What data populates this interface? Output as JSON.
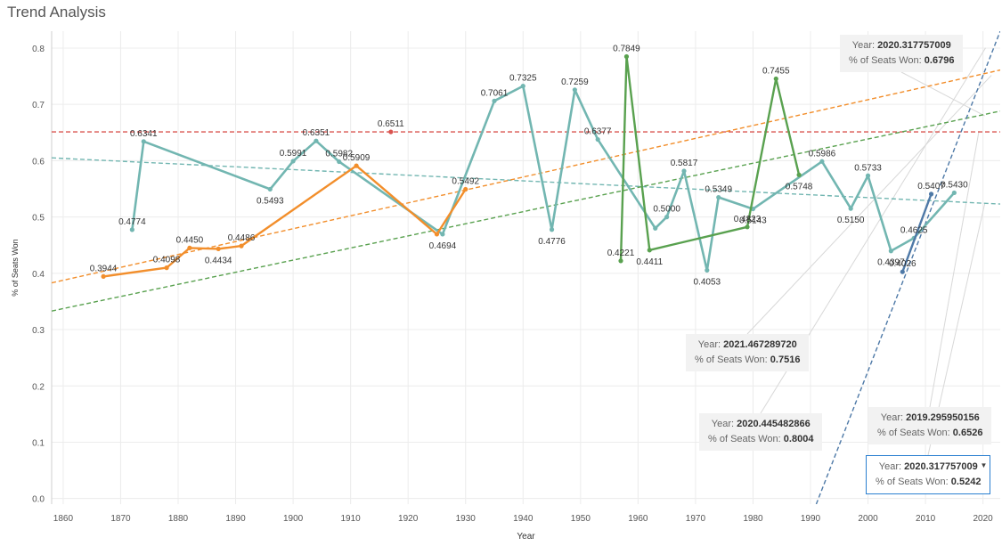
{
  "title": "Trend Analysis",
  "colors": {
    "teal": "#72b6b1",
    "orange": "#f28e2b",
    "green": "#59a14f",
    "blue": "#4e79a7",
    "red": "#d9534f",
    "grid": "#ececec",
    "tooltip_border": "#2a7fd0"
  },
  "chart_data": {
    "type": "line",
    "xlabel": "Year",
    "ylabel": "% of Seats Won",
    "xlim": [
      1858,
      2023
    ],
    "ylim": [
      -0.01,
      0.83
    ],
    "xticks": [
      "1860",
      "1870",
      "1880",
      "1890",
      "1900",
      "1910",
      "1920",
      "1930",
      "1940",
      "1950",
      "1960",
      "1970",
      "1980",
      "1990",
      "2000",
      "2010",
      "2020"
    ],
    "yticks": [
      "0.0",
      "0.1",
      "0.2",
      "0.3",
      "0.4",
      "0.5",
      "0.6",
      "0.7",
      "0.8"
    ],
    "grid": true,
    "series": [
      {
        "color": "#72b6b1",
        "points": [
          {
            "x": 1872,
            "y": 0.4774,
            "label": "0.4774"
          },
          {
            "x": 1874,
            "y": 0.6341,
            "label": "0.6341"
          },
          {
            "x": 1896,
            "y": 0.5493,
            "label": "0.5493"
          },
          {
            "x": 1900,
            "y": 0.5991,
            "label": "0.5991"
          },
          {
            "x": 1904,
            "y": 0.6351,
            "label": "0.6351"
          },
          {
            "x": 1908,
            "y": 0.5982,
            "label": "0.5982"
          },
          {
            "x": 1926,
            "y": 0.4694,
            "label": "0.4694"
          },
          {
            "x": 1935,
            "y": 0.7061,
            "label": "0.7061"
          },
          {
            "x": 1940,
            "y": 0.7325,
            "label": "0.7325"
          },
          {
            "x": 1945,
            "y": 0.4776,
            "label": "0.4776"
          },
          {
            "x": 1949,
            "y": 0.7259,
            "label": "0.7259"
          },
          {
            "x": 1953,
            "y": 0.6377,
            "label": "0.6377"
          },
          {
            "x": 1963,
            "y": 0.48,
            "label": ""
          },
          {
            "x": 1965,
            "y": 0.5,
            "label": "0.5000"
          },
          {
            "x": 1968,
            "y": 0.5817,
            "label": "0.5817"
          },
          {
            "x": 1972,
            "y": 0.4053,
            "label": "0.4053"
          },
          {
            "x": 1974,
            "y": 0.5349,
            "label": "0.5349"
          },
          {
            "x": 1980,
            "y": 0.5143,
            "label": "0.5143"
          },
          {
            "x": 1992,
            "y": 0.5986,
            "label": "0.5986"
          },
          {
            "x": 1997,
            "y": 0.515,
            "label": "0.5150"
          },
          {
            "x": 2000,
            "y": 0.5733,
            "label": "0.5733"
          },
          {
            "x": 2004,
            "y": 0.4397,
            "label": "0.4397"
          },
          {
            "x": 2008,
            "y": 0.4625,
            "label": "0.4625"
          },
          {
            "x": 2015,
            "y": 0.543,
            "label": "0.5430"
          }
        ]
      },
      {
        "color": "#f28e2b",
        "points": [
          {
            "x": 1867,
            "y": 0.3944,
            "label": "0.3944"
          },
          {
            "x": 1878,
            "y": 0.4098,
            "label": "0.4098"
          },
          {
            "x": 1882,
            "y": 0.445,
            "label": "0.4450"
          },
          {
            "x": 1887,
            "y": 0.4434,
            "label": "0.4434"
          },
          {
            "x": 1891,
            "y": 0.4486,
            "label": "0.4486"
          },
          {
            "x": 1911,
            "y": 0.5909,
            "label": "0.5909"
          },
          {
            "x": 1925,
            "y": 0.4694,
            "label": ""
          },
          {
            "x": 1930,
            "y": 0.5492,
            "label": "0.5492"
          }
        ]
      },
      {
        "color": "#59a14f",
        "points": [
          {
            "x": 1957,
            "y": 0.4221,
            "label": "0.4221"
          },
          {
            "x": 1958,
            "y": 0.7849,
            "label": "0.7849"
          },
          {
            "x": 1962,
            "y": 0.4411,
            "label": "0.4411"
          },
          {
            "x": 1979,
            "y": 0.4823,
            "label": "0.4823"
          },
          {
            "x": 1984,
            "y": 0.7455,
            "label": "0.7455"
          },
          {
            "x": 1988,
            "y": 0.5748,
            "label": "0.5748"
          }
        ]
      },
      {
        "color": "#4e79a7",
        "points": [
          {
            "x": 2006,
            "y": 0.4026,
            "label": "0.4026"
          },
          {
            "x": 2011,
            "y": 0.5407,
            "label": "0.5407"
          }
        ]
      },
      {
        "color": "#d9534f",
        "points": [
          {
            "x": 1917,
            "y": 0.6511,
            "label": "0.6511"
          }
        ]
      }
    ],
    "reference_line": {
      "y": 0.6511,
      "color": "#d9534f"
    },
    "trend_lines": [
      {
        "color": "#72b6b1",
        "x": [
          1858,
          2023
        ],
        "y": [
          0.605,
          0.523
        ]
      },
      {
        "color": "#f28e2b",
        "x": [
          1858,
          2023
        ],
        "y": [
          0.383,
          0.761
        ]
      },
      {
        "color": "#59a14f",
        "x": [
          1858,
          2023
        ],
        "y": [
          0.333,
          0.688
        ]
      },
      {
        "color": "#4e79a7",
        "x": [
          1991,
          2023
        ],
        "y": [
          -0.01,
          0.83
        ]
      }
    ],
    "tooltips": [
      {
        "year_label": "Year:",
        "year": "2020.317757009",
        "value_label": "% of Seats Won:",
        "value": "0.6796",
        "selected": false,
        "point": {
          "x": 2020.32,
          "y": 0.6796
        }
      },
      {
        "year_label": "Year:",
        "year": "2021.467289720",
        "value_label": "% of Seats Won:",
        "value": "0.7516",
        "selected": false,
        "point": {
          "x": 2021.47,
          "y": 0.7516
        }
      },
      {
        "year_label": "Year:",
        "year": "2020.445482866",
        "value_label": "% of Seats Won:",
        "value": "0.8004",
        "selected": false,
        "point": {
          "x": 2020.45,
          "y": 0.8004
        }
      },
      {
        "year_label": "Year:",
        "year": "2019.295950156",
        "value_label": "% of Seats Won:",
        "value": "0.6526",
        "selected": false,
        "point": {
          "x": 2019.3,
          "y": 0.6526
        }
      },
      {
        "year_label": "Year:",
        "year": "2020.317757009",
        "value_label": "% of Seats Won:",
        "value": "0.5242",
        "selected": true,
        "point": {
          "x": 2020.32,
          "y": 0.5242
        }
      }
    ]
  }
}
